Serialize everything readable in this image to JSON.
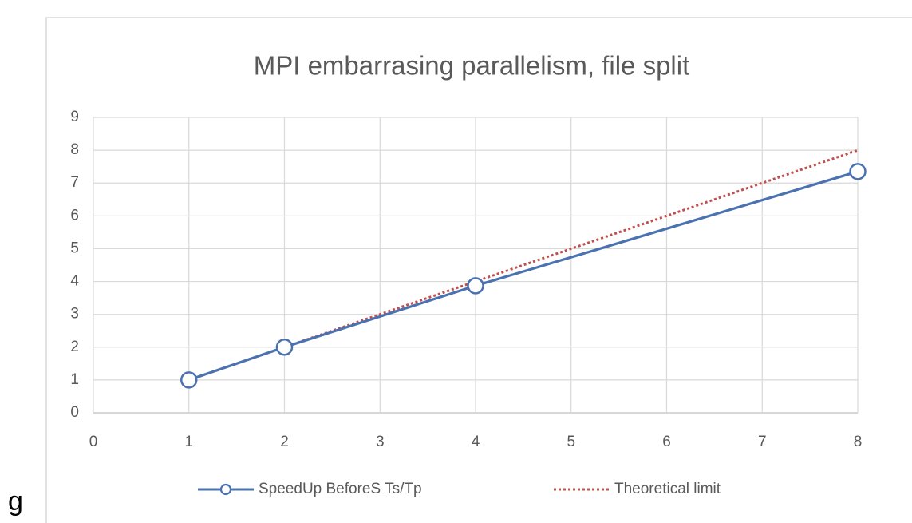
{
  "stray_text": "g",
  "chart_data": {
    "type": "line",
    "title": "MPI embarrasing parallelism, file split",
    "x": [
      1,
      2,
      4,
      8
    ],
    "series": [
      {
        "name": "SpeedUp BeforeS Ts/Tp",
        "color": "#4a72b0",
        "style": "solid",
        "marker": "circle",
        "values": [
          1.0,
          2.0,
          3.87,
          7.35
        ]
      },
      {
        "name": "Theoretical limit",
        "color": "#c0504d",
        "style": "dotted",
        "values": [
          1,
          2,
          4,
          8
        ]
      }
    ],
    "xlim": [
      0,
      8
    ],
    "xticks": [
      0,
      1,
      2,
      3,
      4,
      5,
      6,
      7,
      8
    ],
    "ylim": [
      0,
      9
    ],
    "yticks": [
      0,
      1,
      2,
      3,
      4,
      5,
      6,
      7,
      8,
      9
    ],
    "grid": true,
    "legend": "bottom"
  }
}
